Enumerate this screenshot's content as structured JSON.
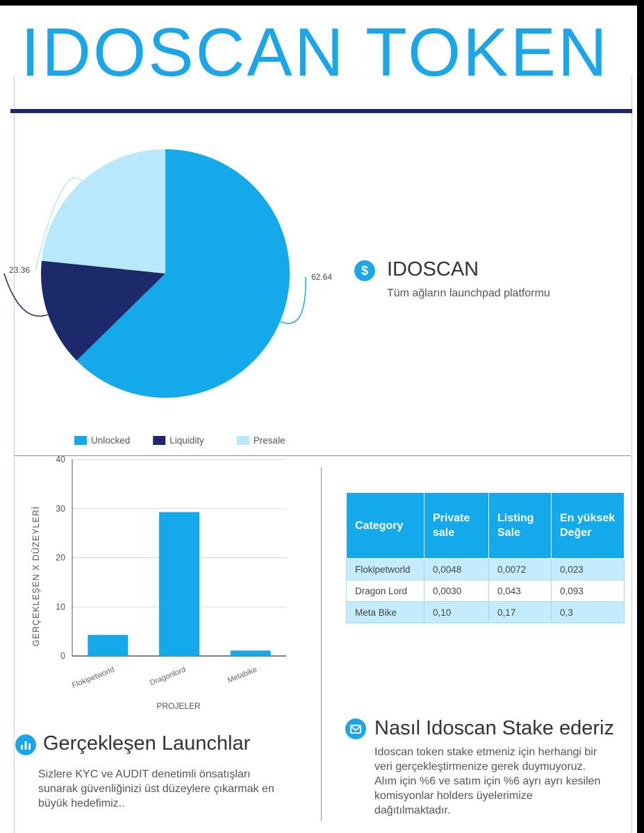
{
  "header": {
    "title": "IDOSCAN TOKEN"
  },
  "chart_data": [
    {
      "type": "pie",
      "labels": [
        "Unlocked",
        "Liquidity",
        "Presale"
      ],
      "values": [
        62.64,
        14,
        23.36
      ],
      "data_labels": [
        "62.64",
        "14",
        "23.36"
      ],
      "colors": [
        "#14a9ea",
        "#1c2a6b",
        "#b8e8fb"
      ],
      "legend": "bottom"
    },
    {
      "type": "bar",
      "categories": [
        "Flokipetworld",
        "Dragonlord",
        "Metabike"
      ],
      "values": [
        4.3,
        29.3,
        1.1
      ],
      "ylabel": "GERÇEKLEŞEN X DÜZEYLERİ",
      "xlabel": "PROJELER",
      "ylim": [
        0,
        40
      ],
      "yticks": [
        "0",
        "10",
        "20",
        "30",
        "40"
      ],
      "grid": true,
      "color": "#14a9ea"
    }
  ],
  "idoscan": {
    "icon": "dollar-icon",
    "icon_glyph": "$",
    "title": "IDOSCAN",
    "subtitle": "Tüm ağların launchpad platformu"
  },
  "table": {
    "headers": [
      "Category",
      "Private sale",
      "Listing Sale",
      "En yüksek Değer"
    ],
    "rows": [
      [
        "Flokipetworld",
        "0,0048",
        "0,0072",
        "0,023"
      ],
      [
        "Dragon Lord",
        "0,0030",
        "0,043",
        "0,093"
      ],
      [
        "Meta Bike",
        "0,10",
        "0,17",
        "0,3"
      ]
    ]
  },
  "launches": {
    "icon": "bar-chart-icon",
    "title": "Gerçekleşen Launchlar",
    "text": "Sizlere KYC ve AUDIT denetimli önsatışları sunarak güvenliğinizi üst düzeylere çıkarmak  en büyük hedefimiz.."
  },
  "stake": {
    "icon": "envelope-icon",
    "title": "Nasıl Idoscan Stake ederiz",
    "text": "Idoscan token stake etmeniz için herhangi bir veri gerçekleştirmenize gerek duymuyoruz. Alım için %6 ve satım için %6 ayrı ayrı kesilen komisyonlar holders üyelerimize dağıtılmaktadır."
  }
}
